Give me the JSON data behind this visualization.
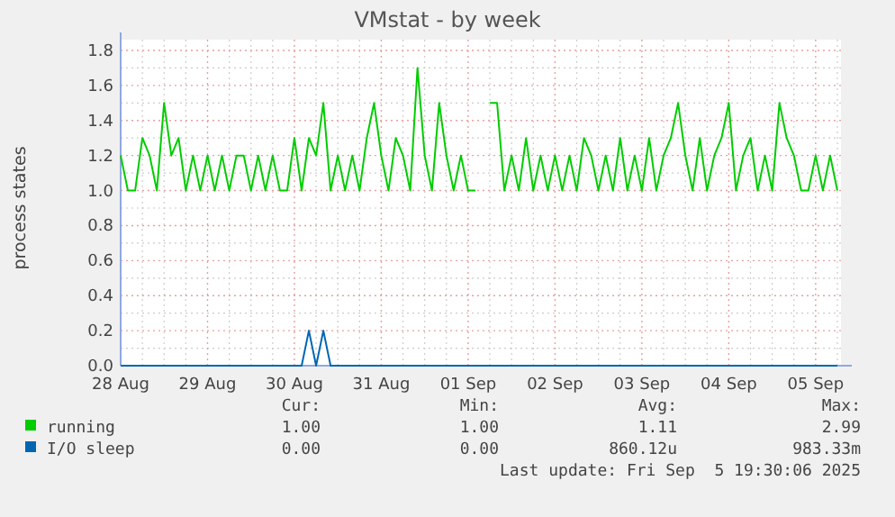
{
  "chart_data": {
    "type": "line",
    "title": "VMstat - by week",
    "ylabel": "process states",
    "x": [
      "2025-08-28T00:00",
      "2025-08-28T02:00",
      "2025-08-28T04:00",
      "2025-08-28T06:00",
      "2025-08-28T08:00",
      "2025-08-28T10:00",
      "2025-08-28T12:00",
      "2025-08-28T14:00",
      "2025-08-28T16:00",
      "2025-08-28T18:00",
      "2025-08-28T20:00",
      "2025-08-28T22:00",
      "2025-08-29T00:00",
      "2025-08-29T02:00",
      "2025-08-29T04:00",
      "2025-08-29T06:00",
      "2025-08-29T08:00",
      "2025-08-29T10:00",
      "2025-08-29T12:00",
      "2025-08-29T14:00",
      "2025-08-29T16:00",
      "2025-08-29T18:00",
      "2025-08-29T20:00",
      "2025-08-29T22:00",
      "2025-08-30T00:00",
      "2025-08-30T02:00",
      "2025-08-30T04:00",
      "2025-08-30T06:00",
      "2025-08-30T08:00",
      "2025-08-30T10:00",
      "2025-08-30T12:00",
      "2025-08-30T14:00",
      "2025-08-30T16:00",
      "2025-08-30T18:00",
      "2025-08-30T20:00",
      "2025-08-30T22:00",
      "2025-08-31T00:00",
      "2025-08-31T02:00",
      "2025-08-31T04:00",
      "2025-08-31T06:00",
      "2025-08-31T08:00",
      "2025-08-31T10:00",
      "2025-08-31T12:00",
      "2025-08-31T14:00",
      "2025-08-31T16:00",
      "2025-08-31T18:00",
      "2025-08-31T20:00",
      "2025-08-31T22:00",
      "2025-09-01T00:00",
      "2025-09-01T02:00",
      "2025-09-01T04:00",
      "2025-09-01T06:00",
      "2025-09-01T08:00",
      "2025-09-01T10:00",
      "2025-09-01T12:00",
      "2025-09-01T14:00",
      "2025-09-01T16:00",
      "2025-09-01T18:00",
      "2025-09-01T20:00",
      "2025-09-01T22:00",
      "2025-09-02T00:00",
      "2025-09-02T02:00",
      "2025-09-02T04:00",
      "2025-09-02T06:00",
      "2025-09-02T08:00",
      "2025-09-02T10:00",
      "2025-09-02T12:00",
      "2025-09-02T14:00",
      "2025-09-02T16:00",
      "2025-09-02T18:00",
      "2025-09-02T20:00",
      "2025-09-02T22:00",
      "2025-09-03T00:00",
      "2025-09-03T02:00",
      "2025-09-03T04:00",
      "2025-09-03T06:00",
      "2025-09-03T08:00",
      "2025-09-03T10:00",
      "2025-09-03T12:00",
      "2025-09-03T14:00",
      "2025-09-03T16:00",
      "2025-09-03T18:00",
      "2025-09-03T20:00",
      "2025-09-03T22:00",
      "2025-09-04T00:00",
      "2025-09-04T02:00",
      "2025-09-04T04:00",
      "2025-09-04T06:00",
      "2025-09-04T08:00",
      "2025-09-04T10:00",
      "2025-09-04T12:00",
      "2025-09-04T14:00",
      "2025-09-04T16:00",
      "2025-09-04T18:00",
      "2025-09-04T20:00",
      "2025-09-04T22:00",
      "2025-09-05T00:00",
      "2025-09-05T02:00",
      "2025-09-05T04:00",
      "2025-09-05T06:00"
    ],
    "series": [
      {
        "name": "running",
        "color": "#00cc00",
        "values": [
          1.2,
          1.0,
          1.0,
          1.3,
          1.2,
          1.0,
          1.5,
          1.2,
          1.3,
          1.0,
          1.2,
          1.0,
          1.2,
          1.0,
          1.2,
          1.0,
          1.2,
          1.2,
          1.0,
          1.2,
          1.0,
          1.2,
          1.0,
          1.0,
          1.3,
          1.0,
          1.3,
          1.2,
          1.5,
          1.0,
          1.2,
          1.0,
          1.2,
          1.0,
          1.3,
          1.5,
          1.2,
          1.0,
          1.3,
          1.2,
          1.0,
          1.7,
          1.2,
          1.0,
          1.5,
          1.2,
          1.0,
          1.2,
          1.0,
          1.0,
          null,
          1.5,
          1.5,
          1.0,
          1.2,
          1.0,
          1.3,
          1.0,
          1.2,
          1.0,
          1.2,
          1.0,
          1.2,
          1.0,
          1.3,
          1.2,
          1.0,
          1.2,
          1.0,
          1.3,
          1.0,
          1.2,
          1.0,
          1.3,
          1.0,
          1.2,
          1.3,
          1.5,
          1.2,
          1.0,
          1.3,
          1.0,
          1.2,
          1.3,
          1.5,
          1.0,
          1.2,
          1.3,
          1.0,
          1.2,
          1.0,
          1.5,
          1.3,
          1.2,
          1.0,
          1.0,
          1.2,
          1.0,
          1.2,
          1.0
        ]
      },
      {
        "name": "I/O sleep",
        "color": "#0066b3",
        "values": [
          0,
          0,
          0,
          0,
          0,
          0,
          0,
          0,
          0,
          0,
          0,
          0,
          0,
          0,
          0,
          0,
          0,
          0,
          0,
          0,
          0,
          0,
          0,
          0,
          0,
          0,
          0.2,
          0,
          0.2,
          0,
          0,
          0,
          0,
          0,
          0,
          0,
          0,
          0,
          0,
          0,
          0,
          0,
          0,
          0,
          0,
          0,
          0,
          0,
          0,
          0,
          0,
          0,
          0,
          0,
          0,
          0,
          0,
          0,
          0,
          0,
          0,
          0,
          0,
          0,
          0,
          0,
          0,
          0,
          0,
          0,
          0,
          0,
          0,
          0,
          0,
          0,
          0,
          0,
          0,
          0,
          0,
          0,
          0,
          0,
          0,
          0,
          0,
          0,
          0,
          0,
          0,
          0,
          0,
          0,
          0,
          0,
          0,
          0,
          0,
          0
        ]
      }
    ],
    "xlim": [
      "2025-08-28T00:00",
      "2025-09-05T07:00"
    ],
    "xticks": [
      {
        "value": "2025-08-28",
        "label": "28 Aug"
      },
      {
        "value": "2025-08-29",
        "label": "29 Aug"
      },
      {
        "value": "2025-08-30",
        "label": "30 Aug"
      },
      {
        "value": "2025-08-31",
        "label": "31 Aug"
      },
      {
        "value": "2025-09-01",
        "label": "01 Sep"
      },
      {
        "value": "2025-09-02",
        "label": "02 Sep"
      },
      {
        "value": "2025-09-03",
        "label": "03 Sep"
      },
      {
        "value": "2025-09-04",
        "label": "04 Sep"
      },
      {
        "value": "2025-09-05",
        "label": "05 Sep"
      }
    ],
    "ylim": [
      0,
      1.8
    ],
    "yticks": [
      {
        "value": 0,
        "label": "0.0"
      },
      {
        "value": 0.2,
        "label": "0.2"
      },
      {
        "value": 0.4,
        "label": "0.4"
      },
      {
        "value": 0.6,
        "label": "0.6"
      },
      {
        "value": 0.8,
        "label": "0.8"
      },
      {
        "value": 1.0,
        "label": "1.0"
      },
      {
        "value": 1.2,
        "label": "1.2"
      },
      {
        "value": 1.4,
        "label": "1.4"
      },
      {
        "value": 1.6,
        "label": "1.6"
      },
      {
        "value": 1.8,
        "label": "1.8"
      }
    ],
    "grid": true,
    "legend": "bottom",
    "annotations": [
      "Cur:",
      "Min:",
      "Avg:",
      "Max:",
      "1.00",
      "1.00",
      "1.11",
      "2.99",
      "0.00",
      "0.00",
      "860.12u",
      "983.33m",
      "Last update: Fri Sep  5 19:30:06 2025"
    ]
  }
}
